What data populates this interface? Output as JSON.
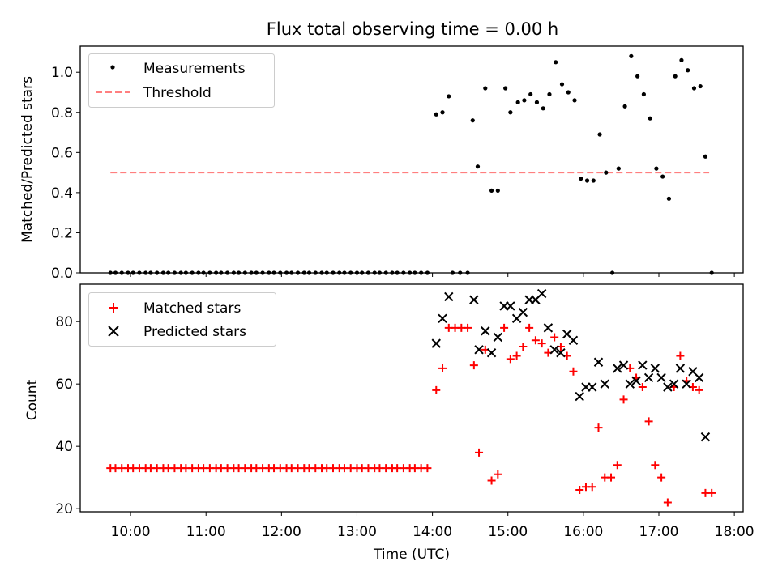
{
  "title": "Flux total observing time = 0.00 h",
  "colors": {
    "measurement": "#000000",
    "threshold": "#ff7f7f",
    "matched": "#ff0000",
    "predicted": "#000000"
  },
  "chart_data": [
    {
      "type": "scatter",
      "ylabel": "Matched/Predicted stars",
      "ylim": [
        0,
        1.13
      ],
      "yticks": [
        "0.0",
        "0.2",
        "0.4",
        "0.6",
        "0.8",
        "1.0"
      ],
      "xlim": [
        "09:20",
        "18:07"
      ],
      "legend": {
        "position": "top-left",
        "entries": [
          "Measurements",
          "Threshold"
        ]
      },
      "threshold": {
        "name": "Threshold",
        "y": 0.5,
        "x": [
          "09:44",
          "17:40"
        ]
      },
      "series": [
        {
          "name": "Measurements",
          "points": [
            [
              "09:44",
              0.0
            ],
            [
              "09:48",
              0.0
            ],
            [
              "09:53",
              0.0
            ],
            [
              "09:58",
              0.0
            ],
            [
              "10:02",
              0.0
            ],
            [
              "10:07",
              0.0
            ],
            [
              "10:12",
              0.0
            ],
            [
              "10:16",
              0.0
            ],
            [
              "10:21",
              0.0
            ],
            [
              "10:26",
              0.0
            ],
            [
              "10:30",
              0.0
            ],
            [
              "10:35",
              0.0
            ],
            [
              "10:40",
              0.0
            ],
            [
              "10:44",
              0.0
            ],
            [
              "10:49",
              0.0
            ],
            [
              "10:54",
              0.0
            ],
            [
              "10:58",
              0.0
            ],
            [
              "11:03",
              0.0
            ],
            [
              "11:08",
              0.0
            ],
            [
              "11:12",
              0.0
            ],
            [
              "11:17",
              0.0
            ],
            [
              "11:22",
              0.0
            ],
            [
              "11:26",
              0.0
            ],
            [
              "11:31",
              0.0
            ],
            [
              "11:36",
              0.0
            ],
            [
              "11:40",
              0.0
            ],
            [
              "11:45",
              0.0
            ],
            [
              "11:50",
              0.0
            ],
            [
              "11:54",
              0.0
            ],
            [
              "11:59",
              0.0
            ],
            [
              "12:04",
              0.0
            ],
            [
              "12:08",
              0.0
            ],
            [
              "12:13",
              0.0
            ],
            [
              "12:18",
              0.0
            ],
            [
              "12:22",
              0.0
            ],
            [
              "12:27",
              0.0
            ],
            [
              "12:32",
              0.0
            ],
            [
              "12:36",
              0.0
            ],
            [
              "12:41",
              0.0
            ],
            [
              "12:46",
              0.0
            ],
            [
              "12:50",
              0.0
            ],
            [
              "12:55",
              0.0
            ],
            [
              "13:00",
              0.0
            ],
            [
              "13:04",
              0.0
            ],
            [
              "13:09",
              0.0
            ],
            [
              "13:14",
              0.0
            ],
            [
              "13:18",
              0.0
            ],
            [
              "13:23",
              0.0
            ],
            [
              "13:28",
              0.0
            ],
            [
              "13:32",
              0.0
            ],
            [
              "13:37",
              0.0
            ],
            [
              "13:42",
              0.0
            ],
            [
              "13:46",
              0.0
            ],
            [
              "13:51",
              0.0
            ],
            [
              "13:56",
              0.0
            ],
            [
              "14:03",
              0.79
            ],
            [
              "14:08",
              0.8
            ],
            [
              "14:13",
              0.88
            ],
            [
              "14:16",
              0.0
            ],
            [
              "14:22",
              0.0
            ],
            [
              "14:28",
              0.0
            ],
            [
              "14:32",
              0.76
            ],
            [
              "14:36",
              0.53
            ],
            [
              "14:42",
              0.92
            ],
            [
              "14:47",
              0.41
            ],
            [
              "14:52",
              0.41
            ],
            [
              "14:58",
              0.92
            ],
            [
              "15:02",
              0.8
            ],
            [
              "15:08",
              0.85
            ],
            [
              "15:13",
              0.86
            ],
            [
              "15:18",
              0.89
            ],
            [
              "15:23",
              0.85
            ],
            [
              "15:28",
              0.82
            ],
            [
              "15:33",
              0.89
            ],
            [
              "15:38",
              1.05
            ],
            [
              "15:43",
              0.94
            ],
            [
              "15:48",
              0.9
            ],
            [
              "15:53",
              0.86
            ],
            [
              "15:58",
              0.47
            ],
            [
              "16:03",
              0.46
            ],
            [
              "16:08",
              0.46
            ],
            [
              "16:13",
              0.69
            ],
            [
              "16:18",
              0.5
            ],
            [
              "16:23",
              0.0
            ],
            [
              "16:28",
              0.52
            ],
            [
              "16:33",
              0.83
            ],
            [
              "16:38",
              1.08
            ],
            [
              "16:43",
              0.98
            ],
            [
              "16:48",
              0.89
            ],
            [
              "16:53",
              0.77
            ],
            [
              "16:58",
              0.52
            ],
            [
              "17:03",
              0.48
            ],
            [
              "17:08",
              0.37
            ],
            [
              "17:13",
              0.98
            ],
            [
              "17:18",
              1.06
            ],
            [
              "17:23",
              1.01
            ],
            [
              "17:28",
              0.92
            ],
            [
              "17:33",
              0.93
            ],
            [
              "17:37",
              0.58
            ],
            [
              "17:42",
              0.0
            ]
          ]
        }
      ]
    },
    {
      "type": "scatter",
      "xlabel": "Time (UTC)",
      "ylabel": "Count",
      "ylim": [
        19,
        92
      ],
      "yticks": [
        "20",
        "40",
        "60",
        "80"
      ],
      "xlim": [
        "09:20",
        "18:07"
      ],
      "xticks": [
        "10:00",
        "11:00",
        "12:00",
        "13:00",
        "14:00",
        "15:00",
        "16:00",
        "17:00",
        "18:00"
      ],
      "legend": {
        "position": "top-left",
        "entries": [
          "Matched stars",
          "Predicted stars"
        ]
      },
      "series": [
        {
          "name": "Matched stars",
          "points": [
            [
              "09:44",
              33
            ],
            [
              "09:48",
              33
            ],
            [
              "09:53",
              33
            ],
            [
              "09:58",
              33
            ],
            [
              "10:02",
              33
            ],
            [
              "10:07",
              33
            ],
            [
              "10:12",
              33
            ],
            [
              "10:16",
              33
            ],
            [
              "10:21",
              33
            ],
            [
              "10:26",
              33
            ],
            [
              "10:30",
              33
            ],
            [
              "10:35",
              33
            ],
            [
              "10:40",
              33
            ],
            [
              "10:44",
              33
            ],
            [
              "10:49",
              33
            ],
            [
              "10:54",
              33
            ],
            [
              "10:58",
              33
            ],
            [
              "11:03",
              33
            ],
            [
              "11:08",
              33
            ],
            [
              "11:12",
              33
            ],
            [
              "11:17",
              33
            ],
            [
              "11:22",
              33
            ],
            [
              "11:26",
              33
            ],
            [
              "11:31",
              33
            ],
            [
              "11:36",
              33
            ],
            [
              "11:40",
              33
            ],
            [
              "11:45",
              33
            ],
            [
              "11:50",
              33
            ],
            [
              "11:54",
              33
            ],
            [
              "11:59",
              33
            ],
            [
              "12:04",
              33
            ],
            [
              "12:08",
              33
            ],
            [
              "12:13",
              33
            ],
            [
              "12:18",
              33
            ],
            [
              "12:22",
              33
            ],
            [
              "12:27",
              33
            ],
            [
              "12:32",
              33
            ],
            [
              "12:36",
              33
            ],
            [
              "12:41",
              33
            ],
            [
              "12:46",
              33
            ],
            [
              "12:50",
              33
            ],
            [
              "12:55",
              33
            ],
            [
              "13:00",
              33
            ],
            [
              "13:04",
              33
            ],
            [
              "13:09",
              33
            ],
            [
              "13:14",
              33
            ],
            [
              "13:18",
              33
            ],
            [
              "13:23",
              33
            ],
            [
              "13:28",
              33
            ],
            [
              "13:32",
              33
            ],
            [
              "13:37",
              33
            ],
            [
              "13:42",
              33
            ],
            [
              "13:46",
              33
            ],
            [
              "13:51",
              33
            ],
            [
              "13:56",
              33
            ],
            [
              "14:03",
              58
            ],
            [
              "14:08",
              65
            ],
            [
              "14:13",
              78
            ],
            [
              "14:18",
              78
            ],
            [
              "14:23",
              78
            ],
            [
              "14:28",
              78
            ],
            [
              "14:33",
              66
            ],
            [
              "14:37",
              38
            ],
            [
              "14:42",
              71
            ],
            [
              "14:47",
              29
            ],
            [
              "14:52",
              31
            ],
            [
              "14:57",
              78
            ],
            [
              "15:02",
              68
            ],
            [
              "15:07",
              69
            ],
            [
              "15:12",
              72
            ],
            [
              "15:17",
              78
            ],
            [
              "15:22",
              74
            ],
            [
              "15:27",
              73
            ],
            [
              "15:32",
              70
            ],
            [
              "15:37",
              75
            ],
            [
              "15:42",
              72
            ],
            [
              "15:47",
              69
            ],
            [
              "15:52",
              64
            ],
            [
              "15:57",
              26
            ],
            [
              "16:02",
              27
            ],
            [
              "16:07",
              27
            ],
            [
              "16:12",
              46
            ],
            [
              "16:17",
              30
            ],
            [
              "16:22",
              30
            ],
            [
              "16:27",
              34
            ],
            [
              "16:32",
              55
            ],
            [
              "16:37",
              65
            ],
            [
              "16:42",
              62
            ],
            [
              "16:47",
              59
            ],
            [
              "16:52",
              48
            ],
            [
              "16:57",
              34
            ],
            [
              "17:02",
              30
            ],
            [
              "17:07",
              22
            ],
            [
              "17:12",
              59
            ],
            [
              "17:17",
              69
            ],
            [
              "17:22",
              61
            ],
            [
              "17:27",
              59
            ],
            [
              "17:32",
              58
            ],
            [
              "17:37",
              25
            ],
            [
              "17:42",
              25
            ]
          ]
        },
        {
          "name": "Predicted stars",
          "points": [
            [
              "14:03",
              73
            ],
            [
              "14:08",
              81
            ],
            [
              "14:13",
              88
            ],
            [
              "14:33",
              87
            ],
            [
              "14:37",
              71
            ],
            [
              "14:42",
              77
            ],
            [
              "14:47",
              70
            ],
            [
              "14:52",
              75
            ],
            [
              "14:57",
              85
            ],
            [
              "15:02",
              85
            ],
            [
              "15:07",
              81
            ],
            [
              "15:12",
              83
            ],
            [
              "15:17",
              87
            ],
            [
              "15:22",
              87
            ],
            [
              "15:27",
              89
            ],
            [
              "15:32",
              78
            ],
            [
              "15:37",
              71
            ],
            [
              "15:42",
              70
            ],
            [
              "15:47",
              76
            ],
            [
              "15:52",
              74
            ],
            [
              "15:57",
              56
            ],
            [
              "16:02",
              59
            ],
            [
              "16:07",
              59
            ],
            [
              "16:12",
              67
            ],
            [
              "16:17",
              60
            ],
            [
              "16:27",
              65
            ],
            [
              "16:32",
              66
            ],
            [
              "16:37",
              60
            ],
            [
              "16:42",
              61
            ],
            [
              "16:47",
              66
            ],
            [
              "16:52",
              62
            ],
            [
              "16:57",
              65
            ],
            [
              "17:02",
              62
            ],
            [
              "17:07",
              59
            ],
            [
              "17:12",
              60
            ],
            [
              "17:17",
              65
            ],
            [
              "17:22",
              60
            ],
            [
              "17:27",
              64
            ],
            [
              "17:32",
              62
            ],
            [
              "17:37",
              43
            ]
          ]
        }
      ]
    }
  ]
}
